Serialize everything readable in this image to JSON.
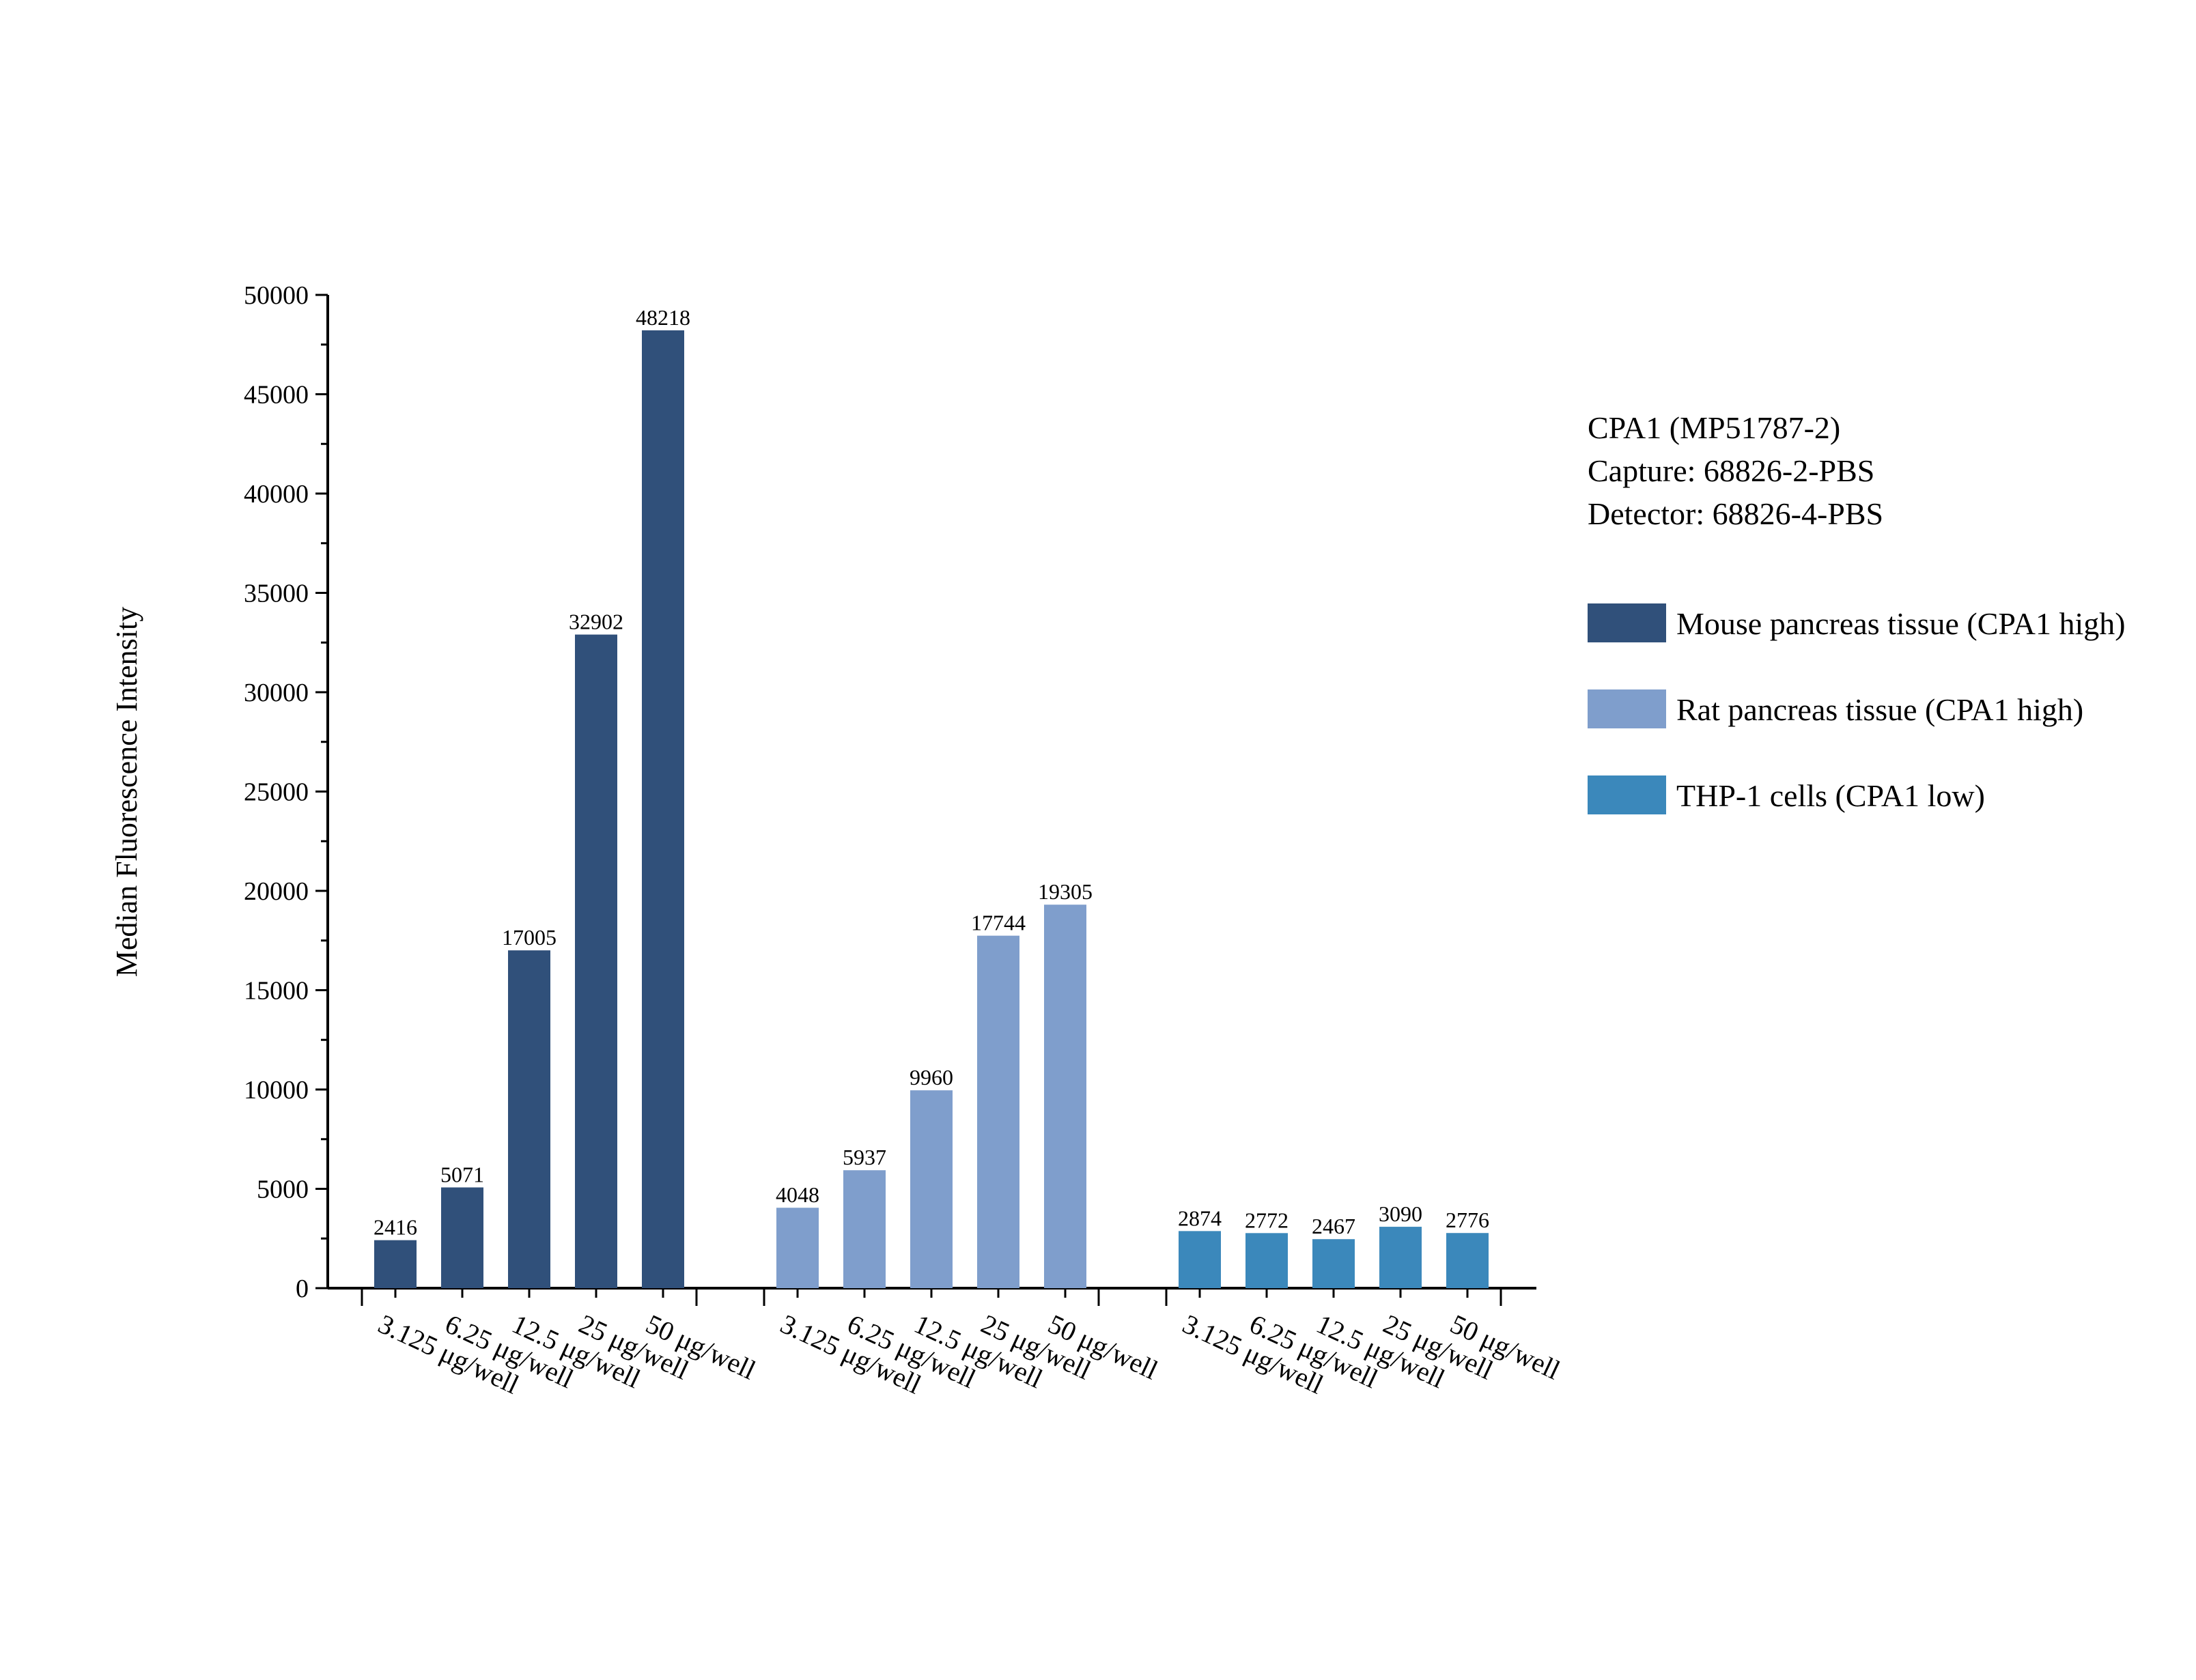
{
  "chart_data": {
    "type": "bar",
    "title": "",
    "ylabel": "Median Fluorescence Intensity",
    "xlabel": "",
    "ylim": [
      0,
      50000
    ],
    "yticks": [
      0,
      5000,
      10000,
      15000,
      20000,
      25000,
      30000,
      35000,
      40000,
      45000,
      50000
    ],
    "y_tick_labels": [
      "0",
      "5000",
      "10000",
      "15000",
      "20000",
      "25000",
      "30000",
      "35000",
      "40000",
      "45000",
      "50000"
    ],
    "categories": [
      "3.125 μg/well",
      "6.25 μg/well",
      "12.5 μg/well",
      "25 μg/well",
      "50 μg/well"
    ],
    "grid": false,
    "legend_position": "right",
    "annotation_lines": [
      "CPA1 (MP51787-2)",
      "Capture: 68826-2-PBS",
      "Detector: 68826-4-PBS"
    ],
    "series": [
      {
        "name": "Mouse pancreas tissue (CPA1 high)",
        "color": "#30507a",
        "values": [
          2416,
          5071,
          17005,
          32902,
          48218
        ],
        "value_labels": [
          "2416",
          "5071",
          "17005",
          "32902",
          "48218"
        ]
      },
      {
        "name": "Rat pancreas tissue (CPA1 high)",
        "color": "#7f9ecc",
        "values": [
          4048,
          5937,
          9960,
          17744,
          19305
        ],
        "value_labels": [
          "4048",
          "5937",
          "9960",
          "17744",
          "19305"
        ]
      },
      {
        "name": "THP-1 cells (CPA1 low)",
        "color": "#3b88bb",
        "values": [
          2874,
          2772,
          2467,
          3090,
          2776
        ],
        "value_labels": [
          "2874",
          "2772",
          "2467",
          "3090",
          "2776"
        ]
      }
    ]
  }
}
